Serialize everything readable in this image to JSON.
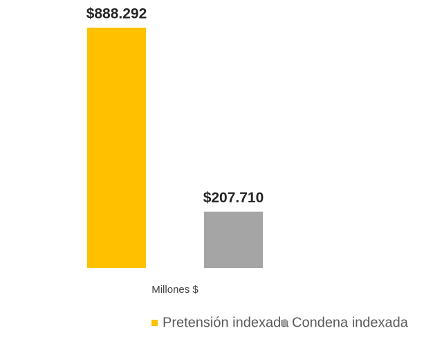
{
  "chart_data": {
    "type": "bar",
    "categories": [
      "Millones $"
    ],
    "series": [
      {
        "name": "Pretensión indexada",
        "color": "#FFC000",
        "values": [
          888292
        ],
        "value_labels": [
          "$888.292"
        ]
      },
      {
        "name": "Condena indexada",
        "color": "#A5A5A5",
        "values": [
          207710
        ],
        "value_labels": [
          "$207.710"
        ]
      }
    ],
    "legend": "bottom"
  }
}
